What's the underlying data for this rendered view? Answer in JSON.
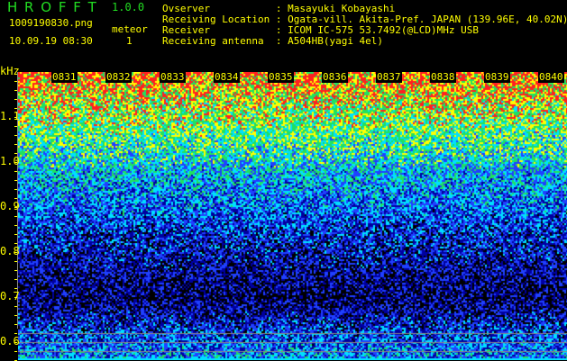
{
  "header": {
    "app_title": "H R O F F T",
    "version": "1.0.0",
    "file_name": "1009190830.png",
    "meteor_label": "meteor",
    "datetime": "10.09.19 08:30",
    "meteor_count": "1"
  },
  "info": [
    {
      "label": "Ovserver           ",
      "value": ": Masayuki Kobayashi"
    },
    {
      "label": "Receiving Location ",
      "value": ": Ogata-vill. Akita-Pref. JAPAN (139.96E, 40.02N)"
    },
    {
      "label": "Receiver           ",
      "value": ": ICOM IC-575 53.7492(@LCD)MHz USB"
    },
    {
      "label": "Receiving antenna  ",
      "value": ": A504HB(yagi 4el)"
    }
  ],
  "chart_data": {
    "type": "heatmap",
    "ylabel": "kHz",
    "y_ticks": [
      "0.6",
      "0.7",
      "0.8",
      "0.9",
      "1.0",
      "1.1"
    ],
    "ylim": [
      0.56,
      1.2
    ],
    "x_ticks": [
      "0831",
      "0832",
      "0833",
      "0834",
      "0835",
      "0836",
      "0837",
      "0838",
      "0839",
      "0840"
    ],
    "xlim": [
      "0830",
      "0840"
    ],
    "reference_lines_khz": [
      0.62,
      0.6,
      0.58
    ],
    "palette": [
      "#000000",
      "#0000a0",
      "#2040ff",
      "#00e0ff",
      "#20e060",
      "#ffff00",
      "#ff2020"
    ]
  },
  "colors": {
    "text": "#ffff00",
    "title": "#22dd22",
    "axis": "#888888"
  }
}
